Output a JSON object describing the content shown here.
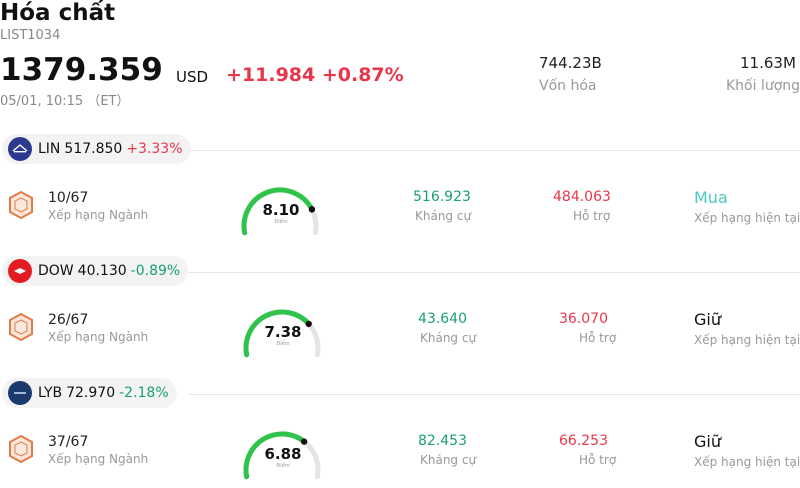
{
  "header": {
    "title": "Hóa chất",
    "code": "LIST1034",
    "price": "1379.359",
    "currency": "USD",
    "change": "+11.984 +0.87%",
    "time": "05/01, 10:15 （ET）",
    "market_cap_value": "744.23B",
    "market_cap_label": "Vốn hóa",
    "volume_value": "11.63M",
    "volume_label": "Khối lượng"
  },
  "colors": {
    "up": "#e8364a",
    "down": "#1a9e77",
    "buy": "#4cc9c0"
  },
  "stocks": [
    {
      "symbol": "LIN",
      "price": "517.850",
      "change": "+3.33%",
      "direction": "up",
      "logo_icon": "linde-logo-icon",
      "rank": "10/67",
      "rank_label": "Xếp hạng Ngành",
      "score": "8.10",
      "score_label": "Điểm",
      "score_fraction": 0.81,
      "resistance": "516.923",
      "resistance_label": "Kháng cự",
      "support": "484.063",
      "support_label": "Hỗ trợ",
      "rating": "Mua",
      "rating_label": "Xếp hạng hiện tại"
    },
    {
      "symbol": "DOW",
      "price": "40.130",
      "change": "-0.89%",
      "direction": "down",
      "logo_icon": "dow-logo-icon",
      "rank": "26/67",
      "rank_label": "Xếp hạng Ngành",
      "score": "7.38",
      "score_label": "Điểm",
      "score_fraction": 0.738,
      "resistance": "43.640",
      "resistance_label": "Kháng cự",
      "support": "36.070",
      "support_label": "Hỗ trợ",
      "rating": "Giữ",
      "rating_label": "Xếp hạng hiện tại"
    },
    {
      "symbol": "LYB",
      "price": "72.970",
      "change": "-2.18%",
      "direction": "down",
      "logo_icon": "lyondellbasell-logo-icon",
      "rank": "37/67",
      "rank_label": "Xếp hạng Ngành",
      "score": "6.88",
      "score_label": "Điểm",
      "score_fraction": 0.688,
      "resistance": "82.453",
      "resistance_label": "Kháng cự",
      "support": "66.253",
      "support_label": "Hỗ trợ",
      "rating": "Giữ",
      "rating_label": "Xếp hạng hiện tại"
    }
  ]
}
